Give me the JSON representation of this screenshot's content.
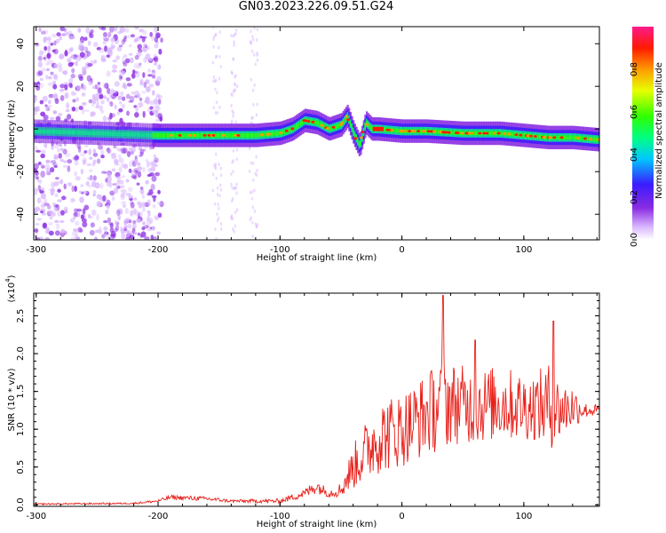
{
  "title": "GN03.2023.226.09.51.G24",
  "chart_data": [
    {
      "type": "heatmap",
      "title": "",
      "xlabel": "Height of straight line (km)",
      "ylabel": "Frequency (Hz)",
      "xlim": [
        -302,
        162
      ],
      "ylim": [
        -52,
        48
      ],
      "xticks": [
        -300,
        -200,
        -100,
        0,
        100
      ],
      "yticks": [
        -40,
        -20,
        0,
        20,
        40
      ],
      "colorbar": {
        "label": "Normalized spectral amplitude",
        "range": [
          0,
          1
        ],
        "ticks": [
          "0.0",
          "0.2",
          "0.4",
          "0.6",
          "0.8"
        ],
        "colormap": "rainbow (white-purple-blue-cyan-green-yellow-red-magenta)"
      },
      "ridge": {
        "description": "dominant spectral line (frequency vs height)",
        "x": [
          -302,
          -250,
          -200,
          -150,
          -120,
          -100,
          -90,
          -80,
          -70,
          -60,
          -50,
          -45,
          -40,
          -35,
          -30,
          -25,
          -20,
          0,
          20,
          50,
          80,
          100,
          120,
          140,
          160
        ],
        "y": [
          -1,
          -2,
          -3,
          -3,
          -3,
          -2,
          0,
          4,
          3,
          0,
          2,
          6,
          -2,
          -8,
          3,
          0,
          0,
          -1,
          -1,
          -2,
          -2,
          -3,
          -4,
          -4,
          -5
        ]
      }
    },
    {
      "type": "line",
      "title": "",
      "xlabel": "Height of straight line (km)",
      "ylabel": "SNR (10 * v/v)",
      "y_scale_label": "(x10",
      "y_scale_exp": "4",
      "xlim": [
        -302,
        162
      ],
      "ylim": [
        -0.02,
        2.8
      ],
      "xticks": [
        -300,
        -200,
        -100,
        0,
        100
      ],
      "yticks": [
        "0.0",
        "0.5",
        "1.0",
        "1.5",
        "2.0",
        "2.5"
      ],
      "series": [
        {
          "color": "#e8201a",
          "envelope_x": [
            -302,
            -220,
            -200,
            -190,
            -160,
            -140,
            -100,
            -80,
            -70,
            -60,
            -50,
            -40,
            -30,
            -20,
            0,
            20,
            30,
            35,
            40,
            60,
            80,
            100,
            110,
            120,
            130,
            140,
            150,
            162
          ],
          "envelope_y": [
            0.01,
            0.02,
            0.05,
            0.1,
            0.08,
            0.05,
            0.05,
            0.15,
            0.25,
            0.15,
            0.2,
            0.5,
            0.7,
            0.9,
            1.0,
            1.2,
            1.3,
            1.4,
            1.35,
            1.3,
            1.35,
            1.3,
            1.3,
            1.3,
            1.25,
            1.3,
            1.25,
            1.25
          ],
          "spread_y": [
            0.01,
            0.01,
            0.02,
            0.03,
            0.03,
            0.02,
            0.03,
            0.06,
            0.1,
            0.05,
            0.1,
            0.3,
            0.4,
            0.5,
            0.5,
            0.55,
            0.6,
            0.7,
            0.55,
            0.5,
            0.5,
            0.45,
            0.45,
            0.6,
            0.4,
            0.3,
            0.1,
            0.08
          ],
          "peaks": [
            {
              "x": 34,
              "y": 2.77
            },
            {
              "x": 124,
              "y": 2.43
            },
            {
              "x": 60,
              "y": 2.18
            }
          ]
        }
      ]
    }
  ]
}
